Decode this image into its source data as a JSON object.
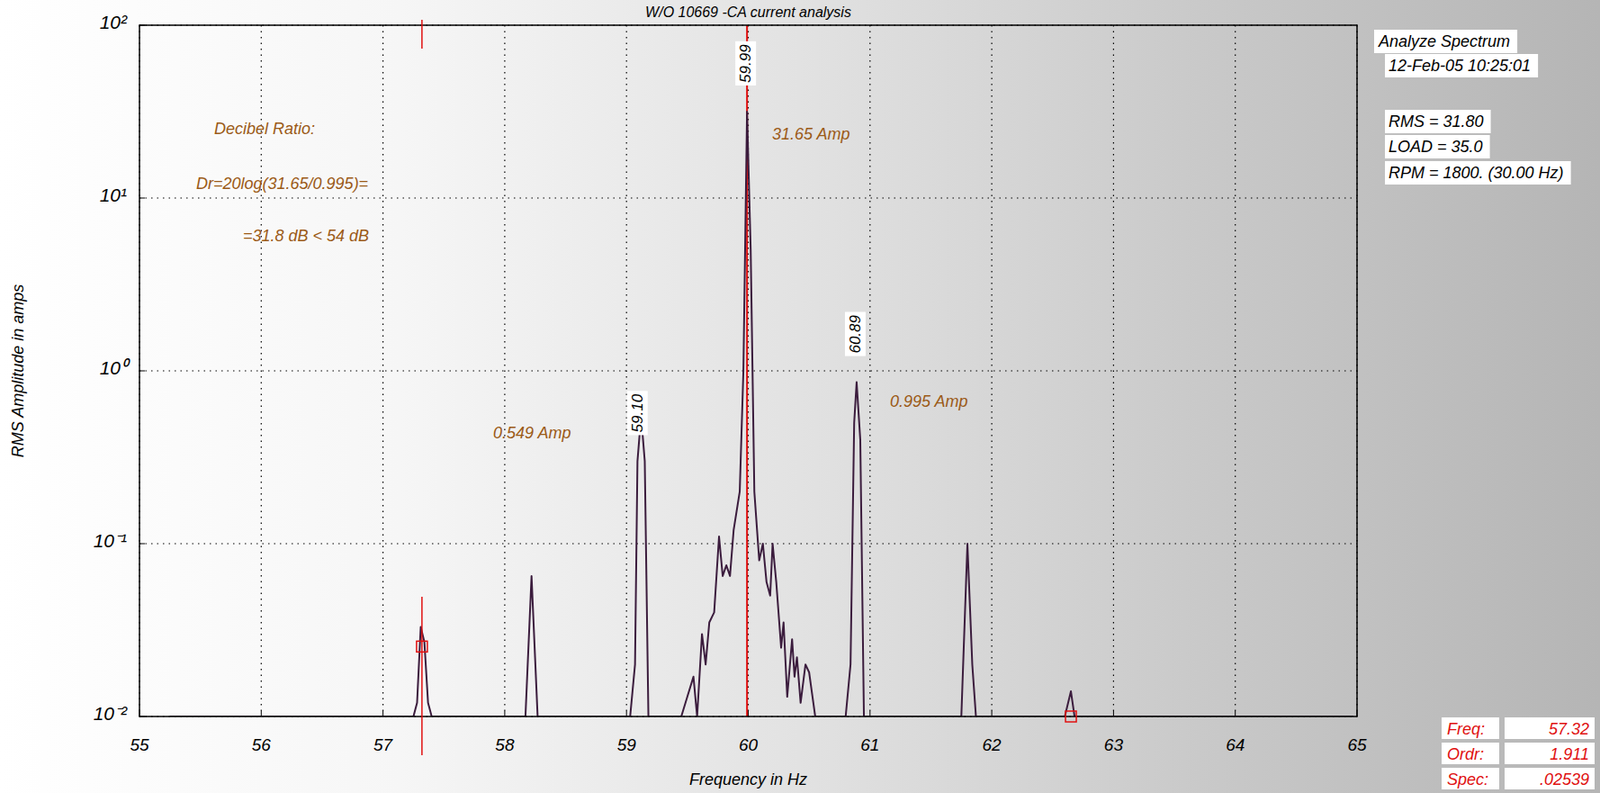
{
  "chart_data": {
    "type": "line",
    "title": "W/O 10669 -CA    current analysis",
    "x_label": "Frequency in Hz",
    "y_label": "RMS Amplitude in amps",
    "x": [
      55.25,
      57.25,
      57.28,
      57.31,
      57.34,
      57.37,
      57.4,
      58.17,
      58.22,
      58.27,
      59.03,
      59.07,
      59.09,
      59.12,
      59.15,
      59.18,
      59.45,
      59.55,
      59.58,
      59.62,
      59.65,
      59.68,
      59.72,
      59.76,
      59.79,
      59.82,
      59.85,
      59.88,
      59.93,
      59.96,
      59.99,
      60.02,
      60.05,
      60.09,
      60.12,
      60.15,
      60.18,
      60.2,
      60.23,
      60.27,
      60.29,
      60.32,
      60.36,
      60.38,
      60.4,
      60.43,
      60.47,
      60.5,
      60.55,
      60.8,
      60.84,
      60.87,
      60.89,
      60.92,
      60.95,
      61.75,
      61.8,
      61.84,
      61.87,
      62.6,
      62.65,
      62.68,
      64.97
    ],
    "values": [
      0.01,
      0.01,
      0.012,
      0.033,
      0.027,
      0.012,
      0.01,
      0.01,
      0.065,
      0.01,
      0.01,
      0.02,
      0.3,
      0.55,
      0.3,
      0.01,
      0.01,
      0.017,
      0.01,
      0.03,
      0.02,
      0.035,
      0.04,
      0.11,
      0.065,
      0.075,
      0.065,
      0.12,
      0.2,
      1.0,
      31.65,
      5,
      0.2,
      0.08,
      0.1,
      0.06,
      0.05,
      0.1,
      0.06,
      0.025,
      0.035,
      0.013,
      0.028,
      0.017,
      0.022,
      0.012,
      0.02,
      0.018,
      0.01,
      0.01,
      0.02,
      0.5,
      0.86,
      0.4,
      0.01,
      0.01,
      0.1,
      0.02,
      0.01,
      0.01,
      0.014,
      0.01,
      0.01
    ],
    "color": "#3b1c3d",
    "log": "y",
    "grid": true,
    "xlim": [
      55,
      65
    ],
    "ylim": [
      0.01,
      100
    ],
    "xticks": [
      55,
      56,
      57,
      58,
      59,
      60,
      61,
      62,
      63,
      64,
      65
    ],
    "yticks": [
      {
        "value": 0.01,
        "label": "10⁻²"
      },
      {
        "value": 0.1,
        "label": "10⁻¹"
      },
      {
        "value": 1,
        "label": "10⁰"
      },
      {
        "value": 10,
        "label": "10¹"
      },
      {
        "value": 100,
        "label": "10²"
      }
    ],
    "cursor": {
      "x": 59.99
    },
    "markers": [
      {
        "x": 57.32,
        "y": 0.02539
      },
      {
        "x": 62.65,
        "y": 0.01
      }
    ],
    "peak_labels": [
      {
        "value": 59.99,
        "label": "59.99"
      },
      {
        "value": 59.1,
        "label": "59.10"
      },
      {
        "value": 60.89,
        "label": "60.89"
      }
    ],
    "annotations": [
      "Decibel Ratio:",
      "Dr=20log(31.65/0.995)=",
      "=31.8 dB < 54 dB",
      "31.65 Amp",
      "0.995 Amp",
      "0.549 Amp"
    ],
    "info": [
      "Analyze Spectrum",
      "12-Feb-05  10:25:01",
      "RMS =  31.80",
      "LOAD =  35.0",
      "RPM = 1800. (30.00 Hz)"
    ],
    "readout": [
      {
        "label": "Freq:",
        "value": "57.32"
      },
      {
        "label": "Ordr:",
        "value": "1.911"
      },
      {
        "label": "Spec:",
        "value": ".02539"
      }
    ]
  }
}
